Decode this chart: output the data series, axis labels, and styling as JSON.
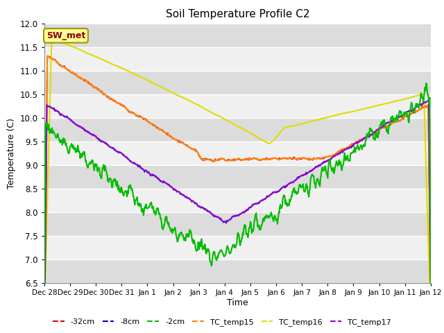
{
  "title": "Soil Temperature Profile C2",
  "xlabel": "Time",
  "ylabel": "Temperature (C)",
  "ylim": [
    6.5,
    12.0
  ],
  "yticks": [
    6.5,
    7.0,
    7.5,
    8.0,
    8.5,
    9.0,
    9.5,
    10.0,
    10.5,
    11.0,
    11.5,
    12.0
  ],
  "xtick_labels": [
    "Dec 28",
    "Dec 29",
    "Dec 30",
    "Dec 31",
    "Jan 1",
    "Jan 2",
    "Jan 3",
    "Jan 4",
    "Jan 5",
    "Jan 6",
    "Jan 7",
    "Jan 8",
    "Jan 9",
    "Jan 10",
    "Jan 11",
    "Jan 12"
  ],
  "plot_bg": "#e8e8e8",
  "band_light": "#f0f0f0",
  "band_dark": "#dcdcdc",
  "sw_met_label": "SW_met",
  "sw_met_bg": "#ffff99",
  "sw_met_border": "#999900",
  "sw_met_text_color": "#880000",
  "series": {
    "neg32cm": {
      "label": "-32cm",
      "color": "#dd0000",
      "lw": 1.2
    },
    "neg8cm": {
      "label": "-8cm",
      "color": "#0000cc",
      "lw": 1.2
    },
    "neg2cm": {
      "label": "-2cm",
      "color": "#00bb00",
      "lw": 1.5
    },
    "tc15": {
      "label": "TC_temp15",
      "color": "#ff8800",
      "lw": 1.5
    },
    "tc16": {
      "label": "TC_temp16",
      "color": "#dddd00",
      "lw": 1.5
    },
    "tc17": {
      "label": "TC_temp17",
      "color": "#9900cc",
      "lw": 1.5
    }
  }
}
